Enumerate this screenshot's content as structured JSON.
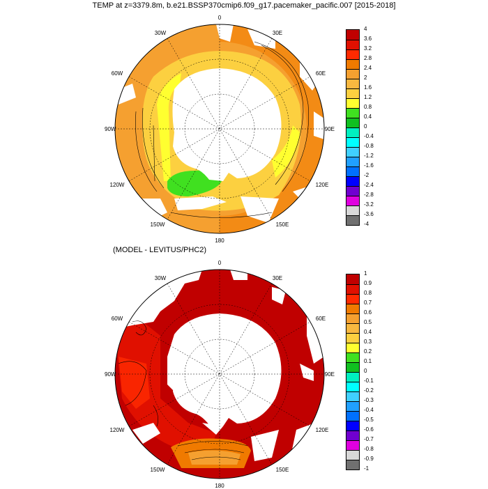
{
  "title": "TEMP at z=3379.8m, b.e21.BSSP370cmip6.f09_g17.pacemaker_pacific.007 [2015-2018]",
  "subtitle": "(MODEL - LEVITUS/PHC2)",
  "lon_labels": [
    "0",
    "30E",
    "60E",
    "90E",
    "120E",
    "150E",
    "180",
    "150W",
    "120W",
    "90W",
    "60W",
    "30W"
  ],
  "map_top": {
    "colorbar": {
      "labels": [
        "4",
        "3.6",
        "3.2",
        "2.8",
        "2.4",
        "2",
        "1.6",
        "1.2",
        "0.8",
        "0.4",
        "0",
        "-0.4",
        "-0.8",
        "-1.2",
        "-1.6",
        "-2",
        "-2.4",
        "-2.8",
        "-3.2",
        "-3.6",
        "-4"
      ],
      "colors": [
        "#c00000",
        "#e01000",
        "#ff2a00",
        "#f07a00",
        "#f5a030",
        "#f8b840",
        "#fcd040",
        "#ffff30",
        "#40e020",
        "#10c020",
        "#00f0c0",
        "#00ffff",
        "#40d0ff",
        "#20a0ff",
        "#0070ff",
        "#0000ff",
        "#7000d0",
        "#e000e0",
        "#d8d8d8",
        "#707070"
      ]
    }
  },
  "map_bottom": {
    "colorbar": {
      "labels": [
        "1",
        "0.9",
        "0.8",
        "0.7",
        "0.6",
        "0.5",
        "0.4",
        "0.3",
        "0.2",
        "0.1",
        "0",
        "-0.1",
        "-0.2",
        "-0.3",
        "-0.4",
        "-0.5",
        "-0.6",
        "-0.7",
        "-0.8",
        "-0.9",
        "-1"
      ],
      "colors": [
        "#c00000",
        "#e01000",
        "#ff2a00",
        "#f07a00",
        "#f5a030",
        "#f8b840",
        "#fcd040",
        "#ffff30",
        "#40e020",
        "#10c020",
        "#00f0c0",
        "#00ffff",
        "#40d0ff",
        "#20a0ff",
        "#0070ff",
        "#0000ff",
        "#7000d0",
        "#e000e0",
        "#d8d8d8",
        "#707070"
      ]
    }
  }
}
